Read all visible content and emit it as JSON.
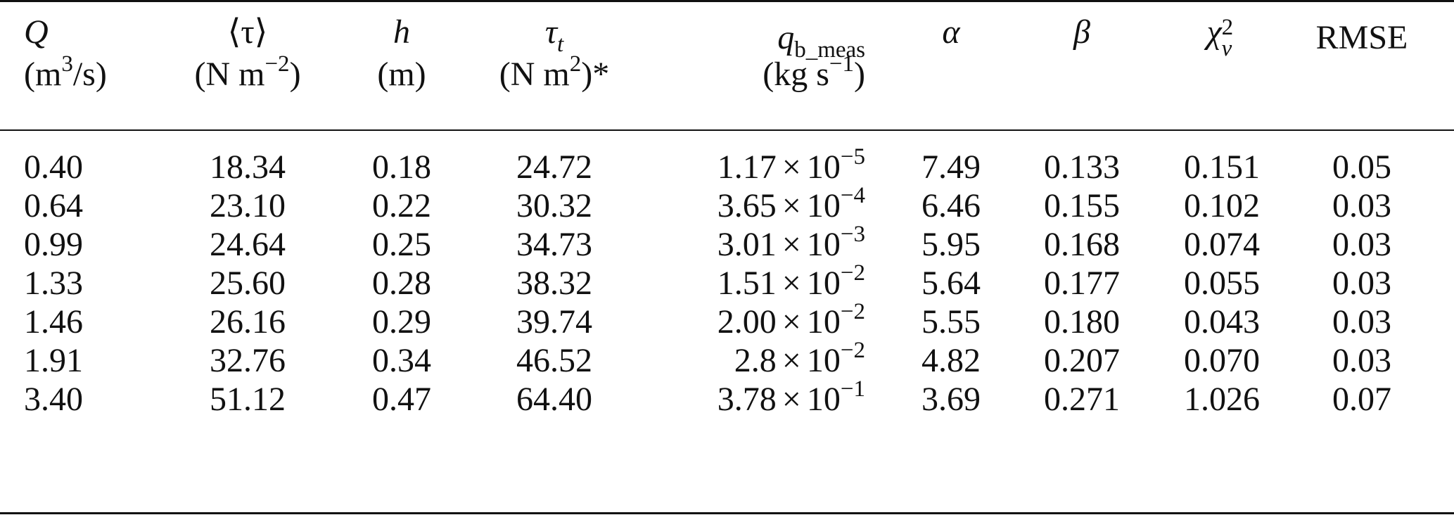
{
  "headers": {
    "q": {
      "symbol": "Q",
      "unit_pre": "(m",
      "unit_sup": "3",
      "unit_post": "/s)"
    },
    "tau_mean": {
      "symbol": "⟨τ⟩",
      "unit_pre": "(N m",
      "unit_sup": "−2",
      "unit_post": ")"
    },
    "h": {
      "symbol": "h",
      "unit": "(m)"
    },
    "tau_t": {
      "symbol": "τ",
      "sub": "t",
      "unit_pre": "(N m",
      "unit_sup": "2",
      "unit_post": ")*"
    },
    "qb": {
      "symbol": "q",
      "sub": "b_meas",
      "unit_pre": "(kg s",
      "unit_sup": "−1",
      "unit_post": ")"
    },
    "alpha": {
      "symbol": "α"
    },
    "beta": {
      "symbol": "β"
    },
    "chi": {
      "symbol": "χ",
      "sup": "2",
      "sub": "v"
    },
    "rmse": {
      "label": "RMSE"
    }
  },
  "rows": [
    {
      "q": "0.40",
      "tau": "18.34",
      "h": "0.18",
      "tau_t": "24.72",
      "qb_mant": "1.17",
      "qb_exp": "−5",
      "alpha": "7.49",
      "beta": "0.133",
      "chi": "0.151",
      "rmse": "0.05"
    },
    {
      "q": "0.64",
      "tau": "23.10",
      "h": "0.22",
      "tau_t": "30.32",
      "qb_mant": "3.65",
      "qb_exp": "−4",
      "alpha": "6.46",
      "beta": "0.155",
      "chi": "0.102",
      "rmse": "0.03"
    },
    {
      "q": "0.99",
      "tau": "24.64",
      "h": "0.25",
      "tau_t": "34.73",
      "qb_mant": "3.01",
      "qb_exp": "−3",
      "alpha": "5.95",
      "beta": "0.168",
      "chi": "0.074",
      "rmse": "0.03"
    },
    {
      "q": "1.33",
      "tau": "25.60",
      "h": "0.28",
      "tau_t": "38.32",
      "qb_mant": "1.51",
      "qb_exp": "−2",
      "alpha": "5.64",
      "beta": "0.177",
      "chi": "0.055",
      "rmse": "0.03"
    },
    {
      "q": "1.46",
      "tau": "26.16",
      "h": "0.29",
      "tau_t": "39.74",
      "qb_mant": "2.00",
      "qb_exp": "−2",
      "alpha": "5.55",
      "beta": "0.180",
      "chi": "0.043",
      "rmse": "0.03"
    },
    {
      "q": "1.91",
      "tau": "32.76",
      "h": "0.34",
      "tau_t": "46.52",
      "qb_mant": "2.8",
      "qb_exp": "−2",
      "alpha": "4.82",
      "beta": "0.207",
      "chi": "0.070",
      "rmse": "0.03"
    },
    {
      "q": "3.40",
      "tau": "51.12",
      "h": "0.47",
      "tau_t": "64.40",
      "qb_mant": "3.78",
      "qb_exp": "−1",
      "alpha": "3.69",
      "beta": "0.271",
      "chi": "1.026",
      "rmse": "0.07"
    }
  ],
  "times_symbol": "×",
  "ten": "10"
}
